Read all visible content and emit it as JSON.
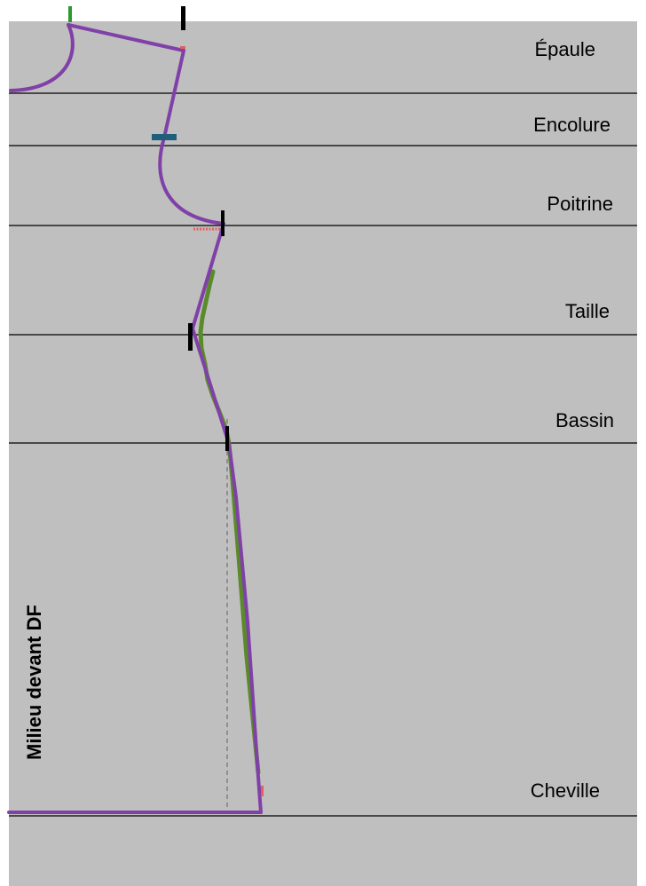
{
  "diagram": {
    "background_color": "#bfbfbf",
    "outline_color": "#8040a8",
    "fit_color": "#5a8a2a",
    "marker_colors": {
      "black": "#000000",
      "teal": "#1f5f7a",
      "green": "#2a9a2a",
      "red": "#e06060"
    },
    "levels": [
      {
        "id": "epaule",
        "label": "Épaule"
      },
      {
        "id": "encolure",
        "label": "Encolure"
      },
      {
        "id": "poitrine",
        "label": "Poitrine"
      },
      {
        "id": "taille",
        "label": "Taille"
      },
      {
        "id": "bassin",
        "label": "Bassin"
      },
      {
        "id": "cheville",
        "label": "Cheville"
      }
    ],
    "side_label": "Milieu devant DF"
  }
}
